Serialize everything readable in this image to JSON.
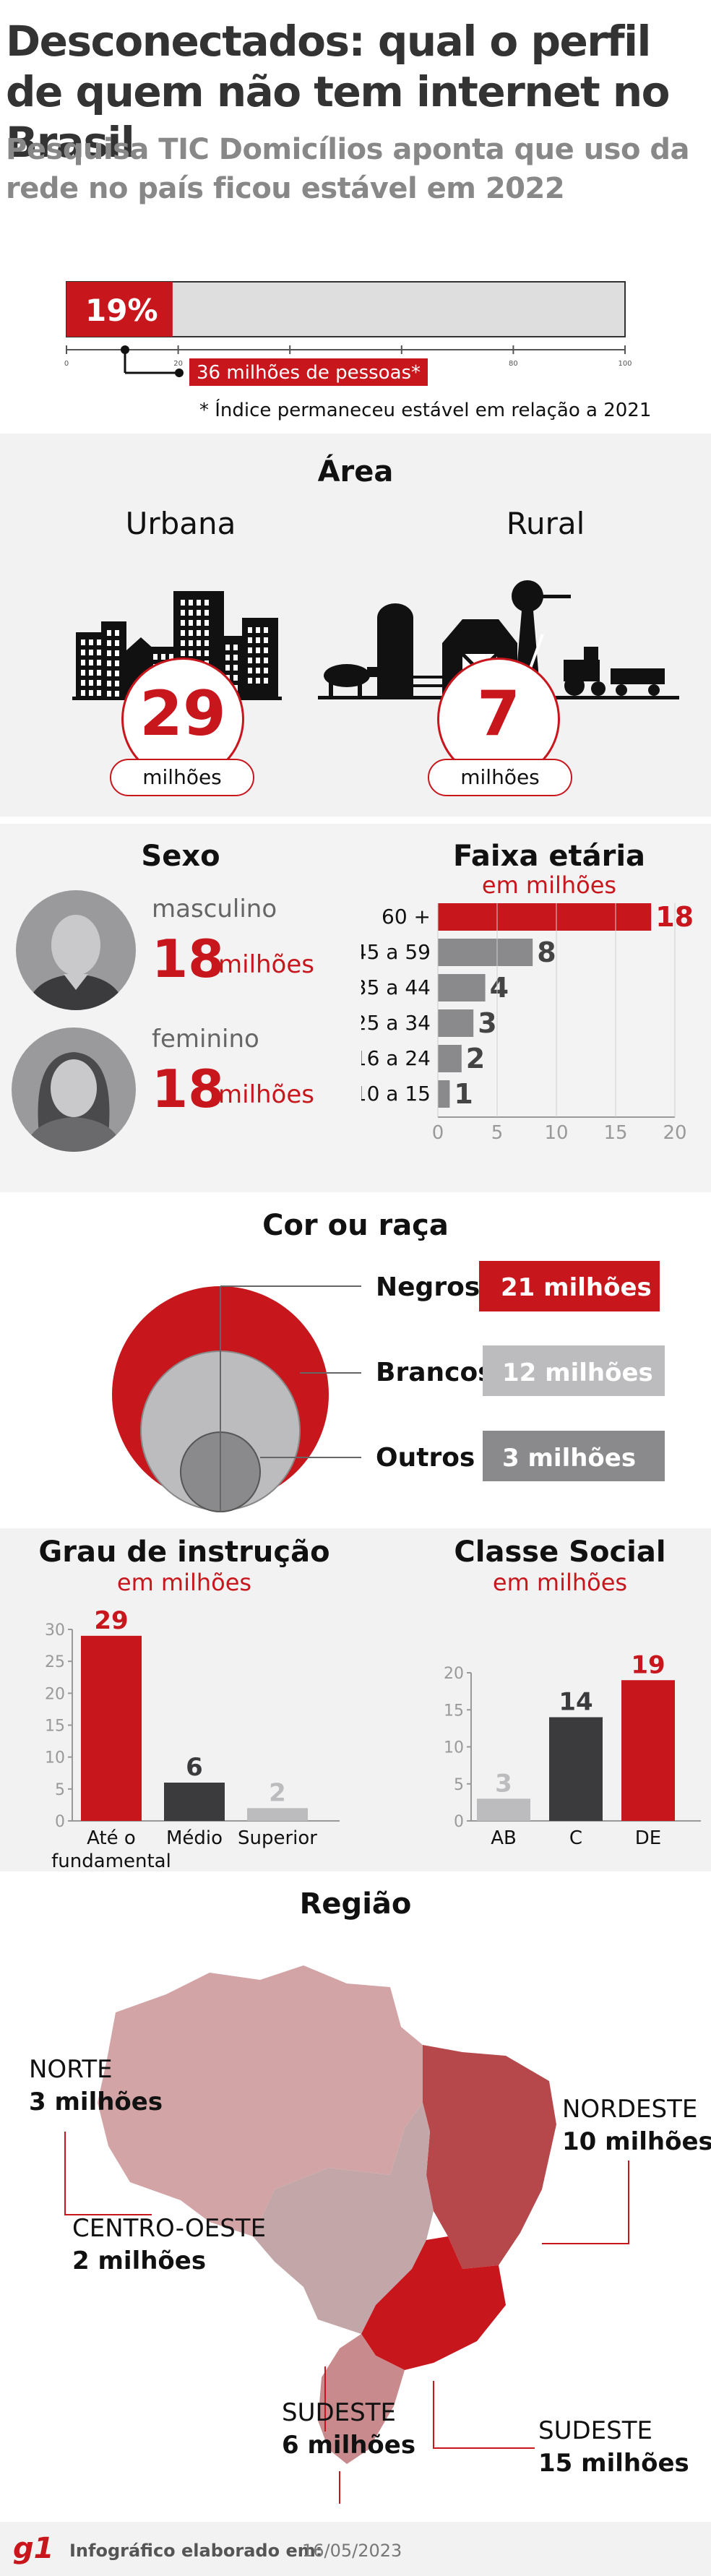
{
  "header": {
    "title": "Desconectados: qual o perfil de quem não tem internet no Brasil",
    "subtitle": "Pesquisa TIC Domicílios aponta que uso da rede no país ficou estável em 2022"
  },
  "overall": {
    "percent_label": "19%",
    "people_label": "36 milhões de pessoas*",
    "note": "* Índice permaneceu estável em relação a 2021"
  },
  "area": {
    "title": "Área",
    "urban_label": "Urbana",
    "urban_value": "29",
    "rural_label": "Rural",
    "rural_value": "7",
    "unit": "milhões"
  },
  "sexo": {
    "title": "Sexo",
    "male_label": "masculino",
    "male_value": "18",
    "female_label": "feminino",
    "female_value": "18",
    "unit": "milhões"
  },
  "faixa": {
    "title": "Faixa etária",
    "subtitle": "em milhões"
  },
  "cor": {
    "title": "Cor ou raça",
    "items": [
      {
        "label": "Negros",
        "value": "21 milhões"
      },
      {
        "label": "Brancos",
        "value": "12 milhões"
      },
      {
        "label": "Outros",
        "value": "3 milhões"
      }
    ]
  },
  "grau": {
    "title": "Grau de instrução",
    "subtitle": "em milhões"
  },
  "classe": {
    "title": "Classe Social",
    "subtitle": "em milhões"
  },
  "regiao": {
    "title": "Região",
    "items": [
      {
        "name": "NORTE",
        "value": "3 milhões"
      },
      {
        "name": "NORDESTE",
        "value": "10 milhões"
      },
      {
        "name": "CENTRO-OESTE",
        "value": "2 milhões"
      },
      {
        "name": "SUDESTE",
        "value": "15 milhões"
      },
      {
        "name": "SUDESTE",
        "value": "6 milhões"
      }
    ]
  },
  "footer": {
    "logo": "g1",
    "label": "Infográfico elaborado em:",
    "date": "16/05/2023"
  },
  "colors": {
    "red": "#c8161d",
    "dark_gray": "#3b3b3d",
    "mid_gray": "#8a8a8c",
    "light_gray": "#bcbcbe",
    "panel": "#f2f2f2"
  },
  "chart_data": [
    {
      "type": "bar",
      "orientation": "horizontal",
      "categories": [
        "Desconectados"
      ],
      "values": [
        19
      ],
      "xlim": [
        0,
        100
      ],
      "ticks": [
        0,
        20,
        40,
        60,
        80,
        100
      ]
    },
    {
      "type": "bar",
      "orientation": "horizontal",
      "title": "Faixa etária",
      "subtitle": "em milhões",
      "categories": [
        "60 +",
        "45 a 59",
        "35 a 44",
        "25 a 34",
        "16 a 24",
        "10 a 15"
      ],
      "values": [
        18,
        8,
        4,
        3,
        2,
        1
      ],
      "xlim": [
        0,
        20
      ],
      "ticks": [
        0,
        5,
        10,
        15,
        20
      ]
    },
    {
      "type": "bar",
      "title": "Grau de instrução",
      "subtitle": "em milhões",
      "categories": [
        "Até o fundamental",
        "Médio",
        "Superior"
      ],
      "values": [
        29,
        6,
        2
      ],
      "ylim": [
        0,
        30
      ],
      "ticks": [
        0,
        5,
        10,
        15,
        20,
        25,
        30
      ]
    },
    {
      "type": "bar",
      "title": "Classe Social",
      "subtitle": "em milhões",
      "categories": [
        "AB",
        "C",
        "DE"
      ],
      "values": [
        3,
        14,
        19
      ],
      "ylim": [
        0,
        20
      ],
      "ticks": [
        0,
        5,
        10,
        15,
        20
      ]
    }
  ]
}
